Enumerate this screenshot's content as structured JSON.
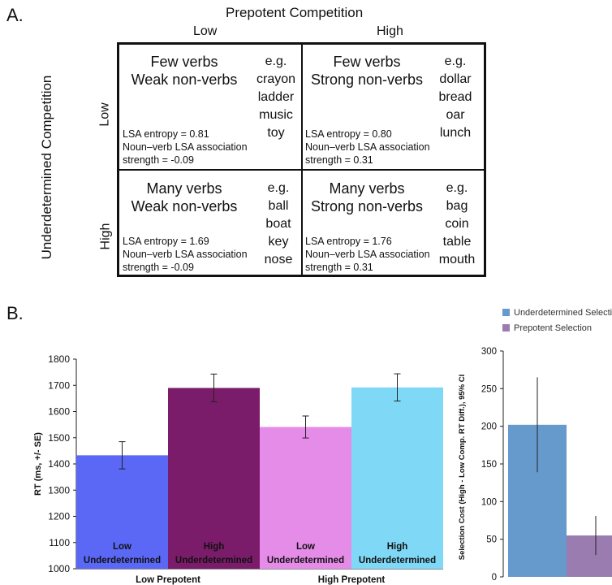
{
  "panel_a": {
    "label": "A.",
    "col_axis_title": "Prepotent Competition",
    "col_labels": [
      "Low",
      "High"
    ],
    "row_axis_title": "Underdetermined Competition",
    "row_labels": [
      "Low",
      "High"
    ],
    "cells": [
      {
        "title_line1": "Few verbs",
        "title_line2": "Weak non-verbs",
        "examples": [
          "e.g.",
          "crayon",
          "ladder",
          "music",
          "toy"
        ],
        "stats": [
          "LSA entropy = 0.81",
          "Noun–verb LSA association",
          "strength = -0.09"
        ],
        "color": "#e58ce8"
      },
      {
        "title_line1": "Few verbs",
        "title_line2": "Strong non-verbs",
        "examples": [
          "e.g.",
          "dollar",
          "bread",
          "oar",
          "lunch"
        ],
        "stats": [
          "LSA entropy = 0.80",
          "Noun–verb LSA association",
          "strength = 0.31"
        ],
        "color": "#9a4a86"
      },
      {
        "title_line1": "Many verbs",
        "title_line2": "Weak non-verbs",
        "examples": [
          "e.g.",
          "ball",
          "boat",
          "key",
          "nose"
        ],
        "stats": [
          "LSA entropy = 1.69",
          "Noun–verb LSA association",
          "strength = -0.09"
        ],
        "color": "#7fe3f4"
      },
      {
        "title_line1": "Many verbs",
        "title_line2": "Strong non-verbs",
        "examples": [
          "e.g.",
          "bag",
          "coin",
          "table",
          "mouth"
        ],
        "stats": [
          "LSA entropy = 1.76",
          "Noun–verb LSA association",
          "strength = 0.31"
        ],
        "color": "#7b87e6"
      }
    ]
  },
  "panel_b": {
    "label": "B."
  },
  "chart_data": [
    {
      "type": "bar",
      "ylabel": "RT (ms, +/- SE)",
      "ylim": [
        1000,
        1800
      ],
      "yticks": [
        1000,
        1100,
        1200,
        1300,
        1400,
        1500,
        1600,
        1700,
        1800
      ],
      "groups": [
        "Low Prepotent",
        "High Prepotent"
      ],
      "bars": [
        {
          "label_line1": "Low",
          "label_line2": "Underdetermined",
          "value": 1433,
          "error": 52,
          "color": "#5b68f6"
        },
        {
          "label_line1": "High",
          "label_line2": "Underdetermined",
          "value": 1690,
          "error": 53,
          "color": "#7a1c6a"
        },
        {
          "label_line1": "Low",
          "label_line2": "Underdetermined",
          "value": 1541,
          "error": 42,
          "color": "#e58ce8"
        },
        {
          "label_line1": "High",
          "label_line2": "Underdetermined",
          "value": 1692,
          "error": 52,
          "color": "#7fd8f6"
        }
      ],
      "grid": false
    },
    {
      "type": "bar",
      "ylabel": "Selection Cost (High - Low Comp. RT Diff.), 95% CI",
      "ylim": [
        0,
        300
      ],
      "yticks": [
        0,
        50,
        100,
        150,
        200,
        250,
        300
      ],
      "legend_placement": "top",
      "series": [
        {
          "name": "Underdetermined Selection",
          "value": 202,
          "ci": [
            139,
            265
          ],
          "color": "#6699cc"
        },
        {
          "name": "Prepotent Selection",
          "value": 55,
          "ci": [
            29,
            81
          ],
          "color": "#9b7cb0"
        }
      ],
      "grid": false
    }
  ]
}
